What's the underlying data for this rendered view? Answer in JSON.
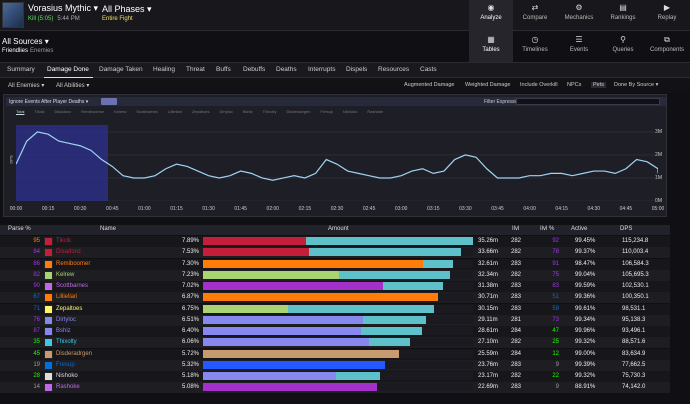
{
  "header": {
    "fight_name": "Vorasius Mythic",
    "kill_text": "Kill (5:05)",
    "time_text": "5:44 PM",
    "phase": "All Phases",
    "phase_sub": "Entire Fight"
  },
  "topnav": [
    {
      "label": "Analyze",
      "icon": "eye-icon",
      "glyph": "◉",
      "active": true
    },
    {
      "label": "Compare",
      "icon": "compare-icon",
      "glyph": "⇄",
      "active": false
    },
    {
      "label": "Mechanics",
      "icon": "mechanics-icon",
      "glyph": "⚙",
      "active": false
    },
    {
      "label": "Rankings",
      "icon": "rankings-icon",
      "glyph": "▤",
      "active": false
    },
    {
      "label": "Replay",
      "icon": "replay-icon",
      "glyph": "▶",
      "active": false
    }
  ],
  "source": {
    "title": "All Sources",
    "friendlies": "Friendlies",
    "enemies": "Enemies"
  },
  "viewnav": [
    {
      "label": "Tables",
      "icon": "tables-icon",
      "glyph": "▦",
      "active": true
    },
    {
      "label": "Timelines",
      "icon": "timelines-icon",
      "glyph": "◷",
      "active": false
    },
    {
      "label": "Events",
      "icon": "events-icon",
      "glyph": "☰",
      "active": false
    },
    {
      "label": "Queries",
      "icon": "queries-icon",
      "glyph": "⚲",
      "active": false
    },
    {
      "label": "Components",
      "icon": "components-icon",
      "glyph": "⧉",
      "active": false
    }
  ],
  "tabs": [
    "Summary",
    "Damage Done",
    "Damage Taken",
    "Healing",
    "Threat",
    "Buffs",
    "Debuffs",
    "Deaths",
    "Interrupts",
    "Dispels",
    "Resources",
    "Casts"
  ],
  "active_tab": 1,
  "filters": {
    "enemies": "All Enemies",
    "abilities": "All Abilities",
    "options": [
      "Augmented Damage",
      "Weighted Damage",
      "Include Overkill",
      "NPCs",
      "Pets",
      "Done By Source"
    ]
  },
  "chart": {
    "ignore_text": "Ignore Events After Player Deaths",
    "filter_label": "Filter Expression:",
    "legend": [
      "Total",
      "Tikcik",
      "Disadonz",
      "Remiboomer",
      "Kelrew",
      "Scottbarnes",
      "Lilliellari",
      "Zepaltoes",
      "Dirtyloc",
      "Bshiz",
      "Thixolty",
      "Disderadrgen",
      "Fresup",
      "Nishoko",
      "Rashoke"
    ],
    "ylabel": "DPS"
  },
  "chart_data": {
    "type": "line",
    "title": "",
    "xlabel": "",
    "ylabel": "DPS",
    "x_ticks": [
      "00:00",
      "00:15",
      "00:30",
      "00:45",
      "01:00",
      "01:15",
      "01:30",
      "01:45",
      "02:00",
      "02:15",
      "02:30",
      "02:45",
      "03:00",
      "03:15",
      "03:30",
      "03:45",
      "04:00",
      "04:15",
      "04:30",
      "04:45",
      "05:00"
    ],
    "y_ticks": [
      "0M",
      "1M",
      "2M",
      "3M"
    ],
    "ylim": [
      0,
      3.3
    ],
    "highlight_x_range": [
      "00:00",
      "00:43"
    ],
    "series": [
      {
        "name": "Total",
        "x_seconds": [
          0,
          5,
          10,
          15,
          20,
          25,
          30,
          35,
          40,
          45,
          50,
          55,
          60,
          65,
          70,
          75,
          80,
          85,
          90,
          95,
          100,
          105,
          110,
          115,
          120,
          125,
          130,
          135,
          140,
          145,
          150,
          155,
          160,
          165,
          170,
          175,
          180,
          185,
          190,
          195,
          200,
          205,
          210,
          215,
          220,
          225,
          230,
          235,
          240,
          245,
          250,
          255,
          260,
          265,
          270,
          275,
          280,
          285,
          290,
          295,
          300,
          305
        ],
        "values": [
          1.6,
          2.6,
          3.0,
          2.9,
          2.6,
          2.5,
          2.4,
          2.2,
          1.8,
          1.5,
          1.1,
          1.0,
          1.0,
          1.1,
          1.4,
          1.6,
          1.5,
          1.3,
          1.1,
          1.0,
          1.1,
          1.3,
          1.2,
          1.0,
          0.9,
          1.0,
          1.1,
          1.0,
          1.2,
          1.8,
          1.6,
          1.3,
          1.2,
          1.1,
          1.0,
          1.0,
          1.1,
          1.3,
          1.4,
          1.2,
          1.3,
          1.8,
          2.0,
          1.9,
          1.4,
          1.0,
          1.0,
          1.0,
          1.1,
          1.1,
          1.2,
          1.2,
          1.1,
          1.2,
          1.3,
          1.3,
          1.2,
          1.4,
          1.8,
          1.7,
          1.4,
          1.2
        ]
      }
    ]
  },
  "table": {
    "headers": [
      "Parse %",
      "Name",
      "Amount",
      "Ilvl",
      "Ilvl %",
      "Active",
      "DPS"
    ],
    "rows": [
      {
        "parse": "95",
        "parse_color": "#ff8000",
        "name": "Tikcik",
        "name_color": "#c41e3a",
        "pct": "7.89%",
        "share": 1.0,
        "main": 0.38,
        "main_color": "#c41e3a",
        "amount": "35.26m",
        "ilvl": "282",
        "ilvl_pct": "92",
        "ilvl_color": "#a335ee",
        "active": "99.45%",
        "dps": "115,234.8"
      },
      {
        "parse": "84",
        "parse_color": "#a335ee",
        "name": "Disadonz",
        "name_color": "#c41e3a",
        "pct": "7.53%",
        "share": 0.954,
        "main": 0.41,
        "main_color": "#c41e3a",
        "amount": "33.66m",
        "ilvl": "282",
        "ilvl_pct": "78",
        "ilvl_color": "#a335ee",
        "active": "99.37%",
        "dps": "110,003.4"
      },
      {
        "parse": "86",
        "parse_color": "#a335ee",
        "name": "Remiboomer",
        "name_color": "#ff7c0a",
        "pct": "7.30%",
        "share": 0.925,
        "main": 0.88,
        "main_color": "#ff7c0a",
        "amount": "32.61m",
        "ilvl": "283",
        "ilvl_pct": "91",
        "ilvl_color": "#a335ee",
        "active": "98.47%",
        "dps": "106,584.3"
      },
      {
        "parse": "82",
        "parse_color": "#a335ee",
        "name": "Kelrew",
        "name_color": "#aad372",
        "pct": "7.23%",
        "share": 0.916,
        "main": 0.55,
        "main_color": "#aad372",
        "amount": "32.34m",
        "ilvl": "282",
        "ilvl_pct": "75",
        "ilvl_color": "#a335ee",
        "active": "99.04%",
        "dps": "105,695.3"
      },
      {
        "parse": "90",
        "parse_color": "#a335ee",
        "name": "Scottbarnes",
        "name_color": "#c069e6",
        "pct": "7.02%",
        "share": 0.89,
        "main": 0.75,
        "main_color": "#a330c9",
        "amount": "31.38m",
        "ilvl": "283",
        "ilvl_pct": "83",
        "ilvl_color": "#a335ee",
        "active": "99.59%",
        "dps": "102,530.1"
      },
      {
        "parse": "67",
        "parse_color": "#0070dd",
        "name": "Lilliellari",
        "name_color": "#ff7c0a",
        "pct": "6.87%",
        "share": 0.87,
        "main": 1.0,
        "main_color": "#ff7c0a",
        "amount": "30.71m",
        "ilvl": "283",
        "ilvl_pct": "51",
        "ilvl_color": "#0070dd",
        "active": "99.36%",
        "dps": "100,350.1"
      },
      {
        "parse": "71",
        "parse_color": "#0070dd",
        "name": "Zepaltoes",
        "name_color": "#fff468",
        "pct": "6.75%",
        "share": 0.855,
        "main": 0.37,
        "main_color": "#aad372",
        "amount": "30.15m",
        "ilvl": "283",
        "ilvl_pct": "59",
        "ilvl_color": "#0070dd",
        "active": "99.61%",
        "dps": "98,531.1"
      },
      {
        "parse": "76",
        "parse_color": "#a335ee",
        "name": "Dirtyloc",
        "name_color": "#8788ee",
        "pct": "6.51%",
        "share": 0.825,
        "main": 0.72,
        "main_color": "#8788ee",
        "amount": "29.11m",
        "ilvl": "281",
        "ilvl_pct": "73",
        "ilvl_color": "#a335ee",
        "active": "99.34%",
        "dps": "95,138.3"
      },
      {
        "parse": "87",
        "parse_color": "#a335ee",
        "name": "Bshiz",
        "name_color": "#8788ee",
        "pct": "6.40%",
        "share": 0.811,
        "main": 0.72,
        "main_color": "#8788ee",
        "amount": "28.61m",
        "ilvl": "284",
        "ilvl_pct": "47",
        "ilvl_color": "#1eff00",
        "active": "99.96%",
        "dps": "93,496.1"
      },
      {
        "parse": "35",
        "parse_color": "#1eff00",
        "name": "Thixolty",
        "name_color": "#3fc7eb",
        "pct": "6.06%",
        "share": 0.768,
        "main": 0.8,
        "main_color": "#8788ee",
        "amount": "27.10m",
        "ilvl": "282",
        "ilvl_pct": "25",
        "ilvl_color": "#1eff00",
        "active": "99.32%",
        "dps": "88,571.6"
      },
      {
        "parse": "45",
        "parse_color": "#1eff00",
        "name": "Disderadrgen",
        "name_color": "#c69b6d",
        "pct": "5.72%",
        "share": 0.725,
        "main": 1.0,
        "main_color": "#c69b6d",
        "amount": "25.59m",
        "ilvl": "284",
        "ilvl_pct": "12",
        "ilvl_color": "#1eff00",
        "active": "99.00%",
        "dps": "83,634.9"
      },
      {
        "parse": "19",
        "parse_color": "#9d9d9d",
        "name": "Fresup",
        "name_color": "#0070dd",
        "pct": "5.32%",
        "share": 0.674,
        "main": 1.0,
        "main_color": "#2459ff",
        "amount": "23.76m",
        "ilvl": "283",
        "ilvl_pct": "9",
        "ilvl_color": "#9d9d9d",
        "active": "99.39%",
        "dps": "77,662.5"
      },
      {
        "parse": "28",
        "parse_color": "#1eff00",
        "name": "Nishoko",
        "name_color": "#dddddd",
        "pct": "5.18%",
        "share": 0.657,
        "main": 0.75,
        "main_color": "#8788ee",
        "amount": "23.17m",
        "ilvl": "282",
        "ilvl_pct": "22",
        "ilvl_color": "#1eff00",
        "active": "99.32%",
        "dps": "75,730.3"
      },
      {
        "parse": "14",
        "parse_color": "#9d9d9d",
        "name": "Rashoke",
        "name_color": "#c069e6",
        "pct": "5.08%",
        "share": 0.644,
        "main": 1.0,
        "main_color": "#a330c9",
        "amount": "22.69m",
        "ilvl": "283",
        "ilvl_pct": "9",
        "ilvl_color": "#9d9d9d",
        "active": "88.91%",
        "dps": "74,142.0"
      }
    ]
  }
}
